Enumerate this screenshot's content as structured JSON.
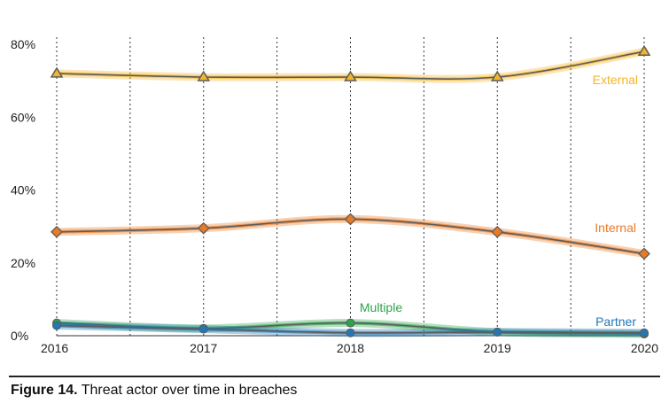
{
  "chart_data": {
    "type": "line",
    "x": [
      "2016",
      "2017",
      "2018",
      "2019",
      "2020"
    ],
    "y_ticks": [
      "0%",
      "20%",
      "40%",
      "60%",
      "80%"
    ],
    "ylim": [
      0,
      80
    ],
    "grid": "vertical dotted lines",
    "series": [
      {
        "name": "External",
        "values": [
          72,
          71,
          71,
          71,
          78
        ],
        "color": "#f3b52a",
        "marker": "triangle"
      },
      {
        "name": "Internal",
        "values": [
          28.5,
          29.5,
          32,
          28.5,
          22.5
        ],
        "color": "#ea7a24",
        "marker": "diamond"
      },
      {
        "name": "Multiple",
        "values": [
          3.5,
          2,
          3.5,
          1,
          0.5
        ],
        "color": "#2ca44a",
        "marker": "circle"
      },
      {
        "name": "Partner",
        "values": [
          2.8,
          1.8,
          0.8,
          1,
          0.8
        ],
        "color": "#2278b5",
        "marker": "circle"
      }
    ]
  },
  "caption": {
    "figure": "Figure 14.",
    "text": " Threat actor over time in breaches"
  }
}
